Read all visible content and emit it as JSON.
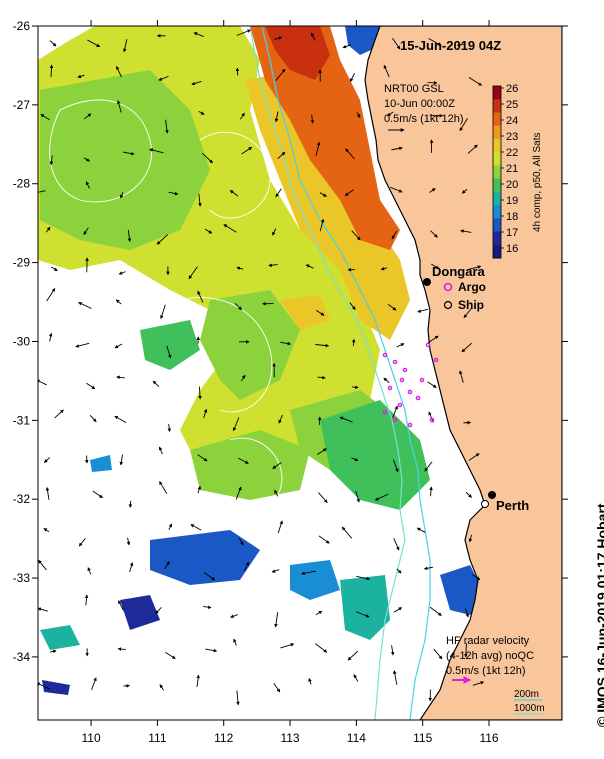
{
  "title": "15-Jun-2019 04Z",
  "product": {
    "line1": "NRT00 GSL",
    "line2": "10-Jun 00:00Z",
    "line3": "0.5m/s (1kt 12h)"
  },
  "colorbar": {
    "label": "4h comp, p50, All Sats",
    "ticks": [
      "26",
      "25",
      "24",
      "23",
      "22",
      "21",
      "20",
      "19",
      "18",
      "17",
      "16"
    ],
    "colors": [
      "#99001a",
      "#c83010",
      "#e46414",
      "#ee9a1e",
      "#eac628",
      "#cfe030",
      "#8cd23c",
      "#3fc05a",
      "#1cb2a0",
      "#1a8ed2",
      "#1a58c6",
      "#1c2a9a",
      "#1a1a7a"
    ]
  },
  "axes": {
    "x_ticks": [
      "110",
      "111",
      "112",
      "113",
      "114",
      "115",
      "116"
    ],
    "y_ticks": [
      "-26",
      "-27",
      "-28",
      "-29",
      "-30",
      "-31",
      "-32",
      "-33",
      "-34"
    ],
    "x_range": [
      109.2,
      117.1
    ],
    "y_range": [
      -34.8,
      -26.0
    ]
  },
  "locations": [
    {
      "name": "Dongara",
      "lon": 114.93,
      "lat": -29.27
    },
    {
      "name": "Perth",
      "lon": 115.86,
      "lat": -31.95
    }
  ],
  "legend": {
    "argo_label": "Argo",
    "ship_label": "Ship"
  },
  "hf_radar": {
    "line1": "HF radar velocity",
    "line2": "(4-12h avg) noQC",
    "line3": "0.5m/s (1kt 12h)"
  },
  "isobaths": {
    "label_200": "200m",
    "label_1000": "1000m",
    "color_200": "#46d2e6",
    "color_1000": "#78e0d2"
  },
  "credit": "© IMOS 16-Jun-2019 01:17 Hobart",
  "colors": {
    "land": "#f9c59b",
    "argo": "#e020e0",
    "hf_vector": "#e020e0"
  }
}
